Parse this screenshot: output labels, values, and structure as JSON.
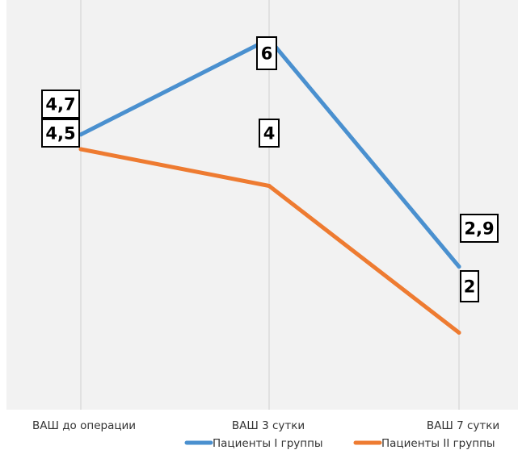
{
  "chart_data": {
    "type": "line",
    "categories": [
      "ВАШ до операции",
      "ВАШ 3 сутки",
      "ВАШ 7 сутки"
    ],
    "series": [
      {
        "name": "Пациенты I группы",
        "values": [
          4.7,
          6,
          2.9
        ],
        "labels": [
          "4,7",
          "6",
          "2,9"
        ],
        "color": "#4A90CF"
      },
      {
        "name": "Пациенты II группы",
        "values": [
          4.5,
          4,
          2
        ],
        "labels": [
          "4,5",
          "4",
          "2"
        ],
        "color": "#EE7B31"
      }
    ],
    "ylim": [
      0,
      6.5
    ],
    "grid": "vertical",
    "legend": "bottom-right",
    "plot_background": "#f2f2f2"
  }
}
